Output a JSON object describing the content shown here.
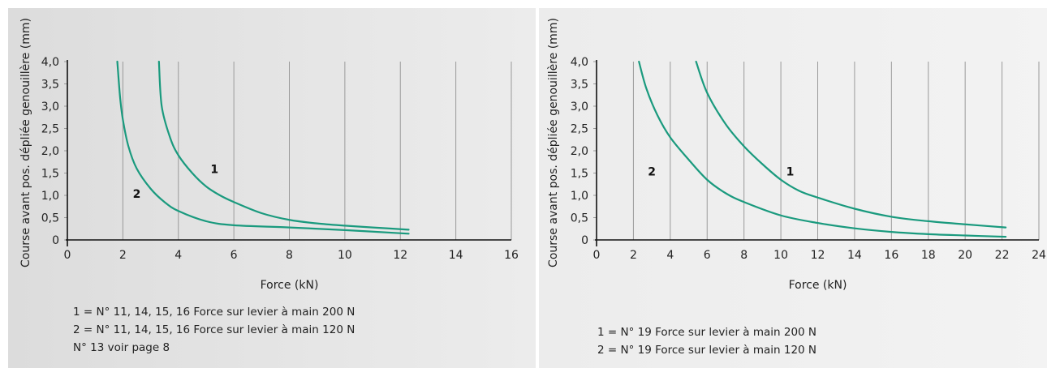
{
  "chart_data": [
    {
      "type": "line",
      "xlabel": "Force (kN)",
      "ylabel": "Course avant pos. dépliée  genouillère (mm)",
      "xlim": [
        0,
        16
      ],
      "ylim": [
        0,
        4.0
      ],
      "x_ticks": [
        "0",
        "2",
        "4",
        "6",
        "8",
        "10",
        "12",
        "14",
        "16"
      ],
      "y_ticks": [
        "0",
        "0,5",
        "1,0",
        "1,5",
        "2,0",
        "2,5",
        "3,0",
        "3,5",
        "4,0"
      ],
      "grid": true,
      "series": [
        {
          "name": "1",
          "x": [
            3.3,
            3.4,
            3.7,
            4.0,
            4.5,
            5.0,
            5.5,
            6.0,
            7.0,
            8.0,
            9.0,
            10.0,
            11.0,
            12.3
          ],
          "y": [
            4.0,
            3.0,
            2.3,
            1.9,
            1.5,
            1.2,
            1.0,
            0.85,
            0.6,
            0.45,
            0.37,
            0.32,
            0.28,
            0.23
          ]
        },
        {
          "name": "2",
          "x": [
            1.8,
            1.9,
            2.0,
            2.2,
            2.5,
            3.0,
            3.5,
            4.0,
            5.0,
            6.0,
            8.0,
            10.0,
            12.3
          ],
          "y": [
            4.0,
            3.2,
            2.7,
            2.1,
            1.6,
            1.15,
            0.85,
            0.65,
            0.42,
            0.33,
            0.28,
            0.22,
            0.14
          ]
        }
      ],
      "curve_labels": [
        {
          "text": "1",
          "x": 5.3,
          "y": 1.5
        },
        {
          "text": "2",
          "x": 2.5,
          "y": 0.95
        }
      ],
      "legend": [
        "1 = N° 11, 14, 15, 16 Force sur levier à main 200 N",
        "2 = N° 11, 14, 15, 16 Force sur levier à main 120 N",
        "N° 13 voir page 8"
      ]
    },
    {
      "type": "line",
      "xlabel": "Force (kN)",
      "ylabel": "Course avant pos. dépliée  genouillère (mm)",
      "xlim": [
        0,
        24
      ],
      "ylim": [
        0,
        4.0
      ],
      "x_ticks": [
        "0",
        "2",
        "4",
        "6",
        "8",
        "10",
        "12",
        "14",
        "16",
        "18",
        "20",
        "22",
        "24"
      ],
      "y_ticks": [
        "0",
        "0,5",
        "1,0",
        "1,5",
        "2,0",
        "2,5",
        "3,0",
        "3,5",
        "4,0"
      ],
      "grid": true,
      "series": [
        {
          "name": "1",
          "x": [
            5.4,
            6.0,
            7.0,
            8.0,
            9.0,
            10.0,
            11.0,
            12.0,
            14.0,
            16.0,
            18.0,
            20.0,
            22.2
          ],
          "y": [
            4.0,
            3.3,
            2.6,
            2.1,
            1.7,
            1.35,
            1.1,
            0.95,
            0.7,
            0.52,
            0.42,
            0.35,
            0.28
          ]
        },
        {
          "name": "2",
          "x": [
            2.3,
            2.7,
            3.3,
            4.0,
            5.0,
            6.0,
            7.0,
            8.0,
            10.0,
            12.0,
            14.0,
            16.0,
            18.0,
            20.0,
            22.2
          ],
          "y": [
            4.0,
            3.4,
            2.8,
            2.3,
            1.8,
            1.35,
            1.05,
            0.85,
            0.55,
            0.38,
            0.26,
            0.18,
            0.13,
            0.1,
            0.07
          ]
        }
      ],
      "curve_labels": [
        {
          "text": "1",
          "x": 10.5,
          "y": 1.45
        },
        {
          "text": "2",
          "x": 3.0,
          "y": 1.45
        }
      ],
      "legend": [
        "1 = N° 19 Force sur levier à main 200 N",
        "2 = N° 19 Force sur levier à main 120 N"
      ]
    }
  ]
}
